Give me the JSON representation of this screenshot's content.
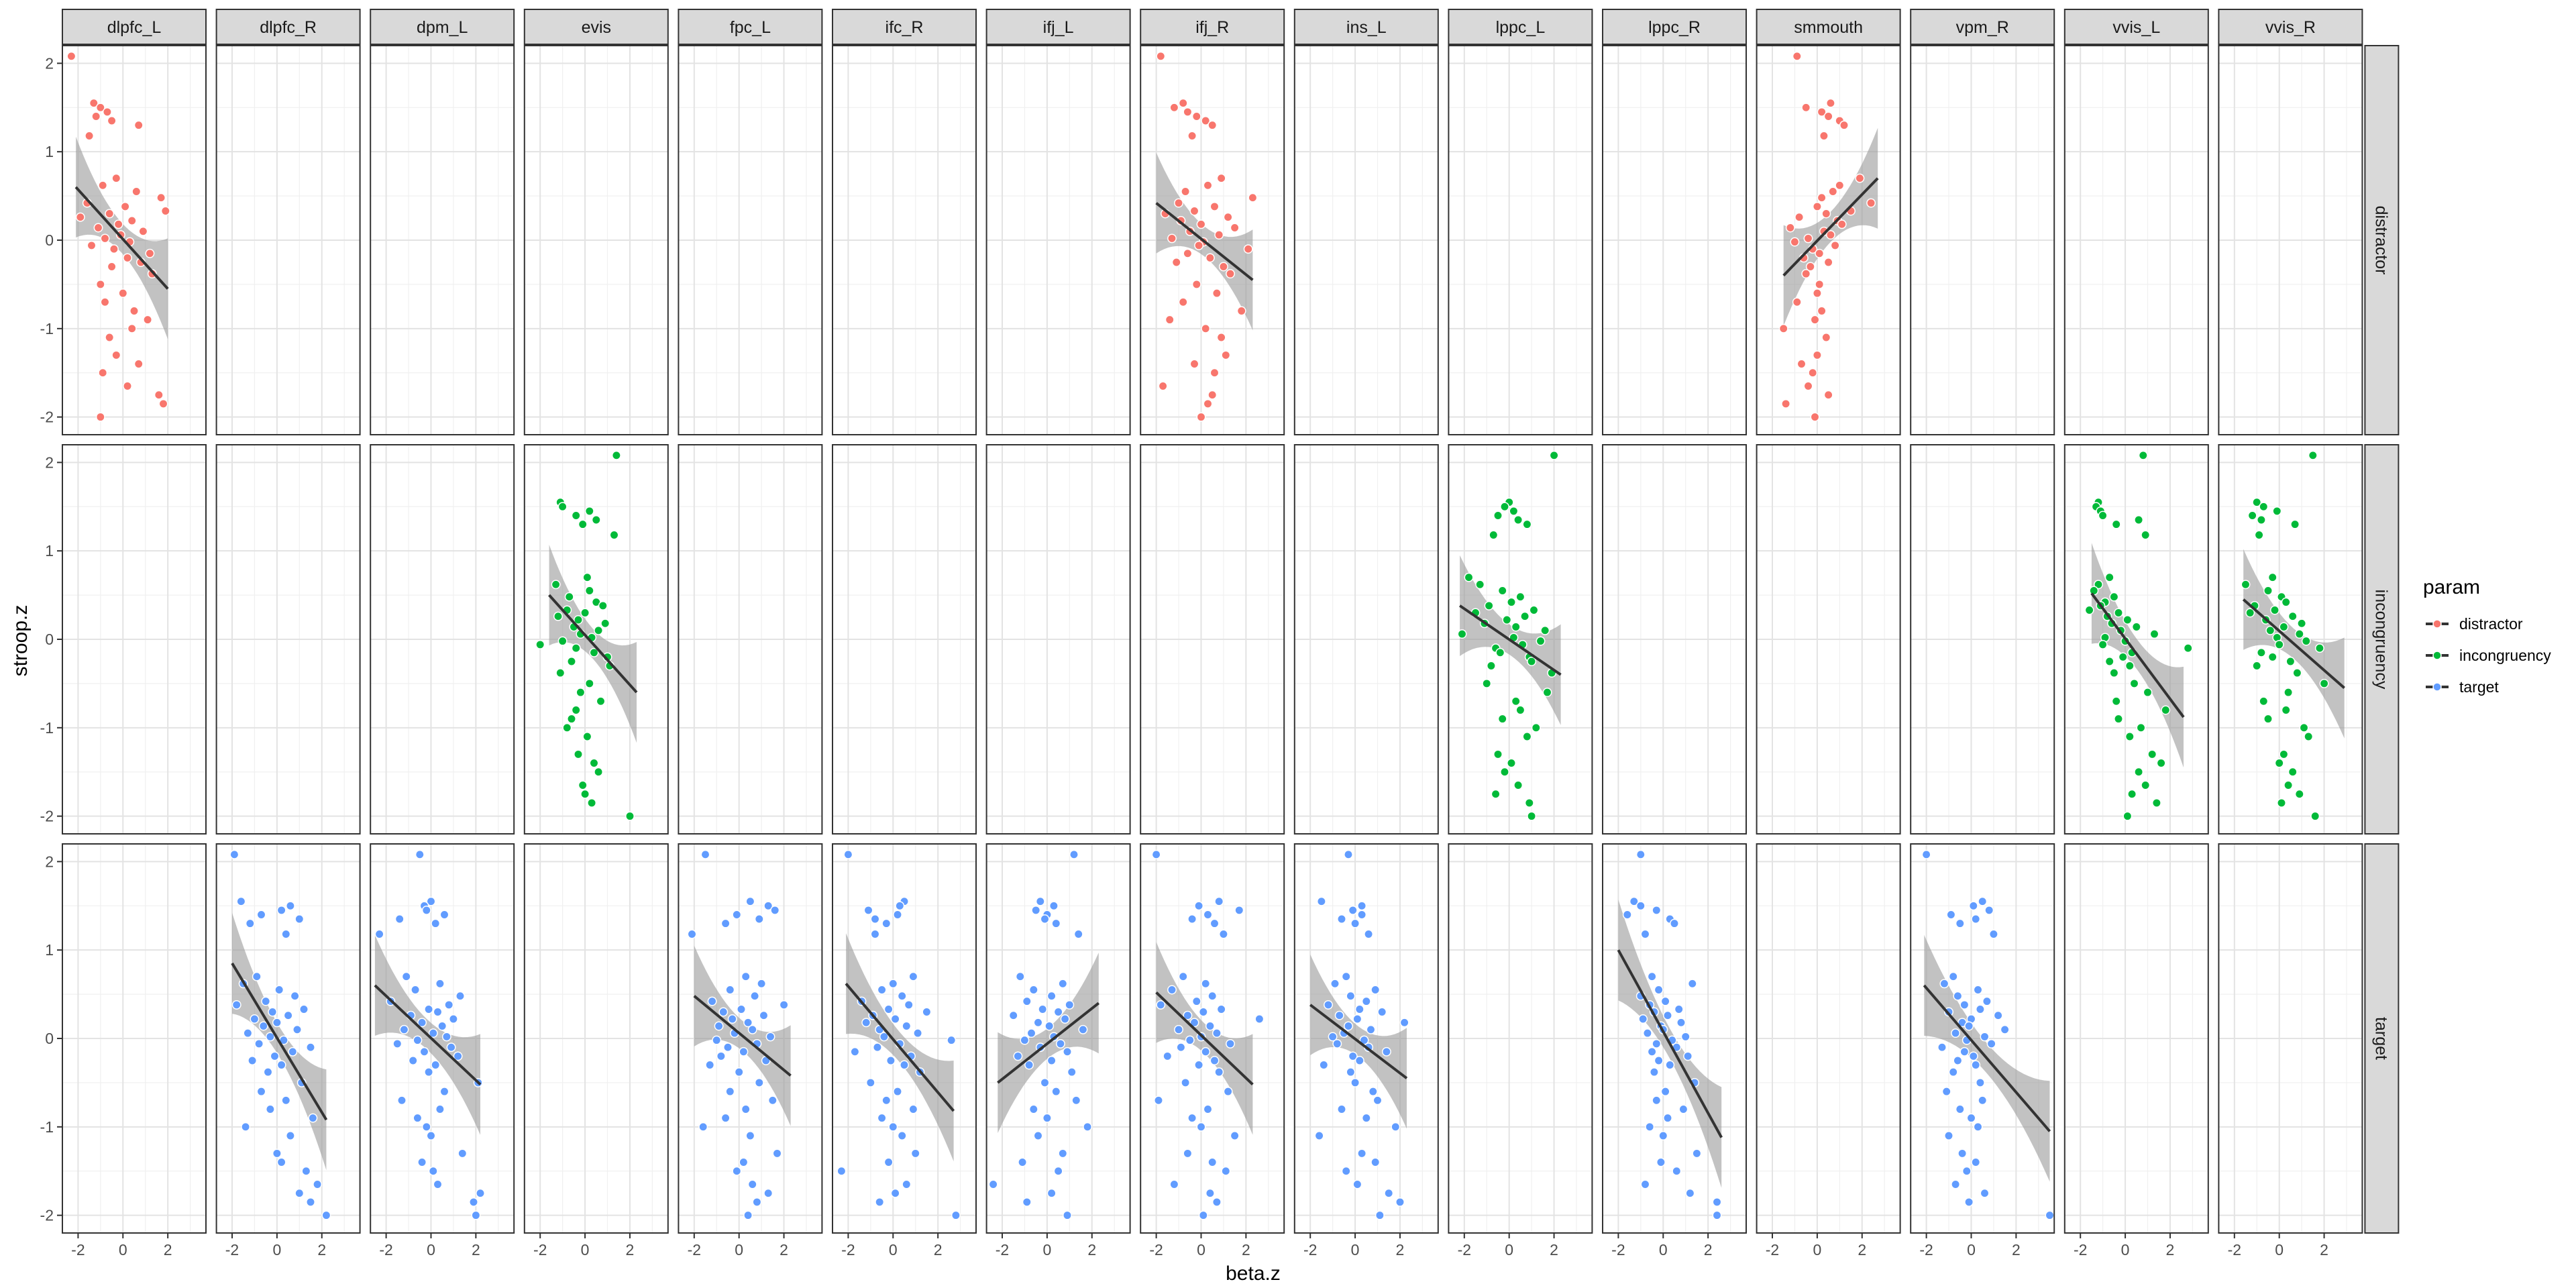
{
  "chart_data": {
    "type": "scatter",
    "facet_columns": [
      "dlpfc_L",
      "dlpfc_R",
      "dpm_L",
      "evis",
      "fpc_L",
      "ifc_R",
      "ifj_L",
      "ifj_R",
      "ins_L",
      "lppc_L",
      "lppc_R",
      "smmouth",
      "vpm_R",
      "vvis_L",
      "vvis_R"
    ],
    "facet_rows": [
      "distractor",
      "incongruency",
      "target"
    ],
    "xlabel": "beta.z",
    "ylabel": "stroop.z",
    "xlim": [
      -2.7,
      3.7
    ],
    "ylim": [
      -2.2,
      2.2
    ],
    "x_ticks": [
      -2,
      0,
      2
    ],
    "y_ticks": [
      -2,
      -1,
      0,
      1,
      2
    ],
    "x_tick_labels": [
      "-2",
      "0",
      "2"
    ],
    "y_tick_labels": [
      "-2",
      "-1",
      "0",
      "1",
      "2"
    ],
    "grid": true,
    "smoothing": "linear fit with confidence band",
    "legend": {
      "title": "param",
      "position": "right",
      "entries": [
        {
          "name": "distractor",
          "color": "#F8766D"
        },
        {
          "name": "incongruency",
          "color": "#00BA38"
        },
        {
          "name": "target",
          "color": "#619CFF"
        }
      ]
    },
    "stroop_z": [
      2.08,
      1.55,
      1.5,
      1.45,
      1.4,
      1.35,
      1.3,
      1.18,
      0.7,
      0.62,
      0.55,
      0.48,
      0.42,
      0.38,
      0.33,
      0.3,
      0.26,
      0.22,
      0.18,
      0.14,
      0.1,
      0.06,
      0.02,
      -0.02,
      -0.06,
      -0.1,
      -0.15,
      -0.2,
      -0.25,
      -0.3,
      -0.38,
      -0.5,
      -0.6,
      -0.7,
      -0.8,
      -0.9,
      -1.0,
      -1.1,
      -1.3,
      -1.4,
      -1.5,
      -1.65,
      -1.75,
      -1.85,
      -2.0
    ],
    "panels": [
      {
        "row": "distractor",
        "col": "dlpfc_L",
        "x": [
          -2.3,
          -1.3,
          -1.0,
          -0.7,
          -1.2,
          -0.5,
          0.7,
          -1.5,
          -0.3,
          -0.9,
          0.6,
          1.7,
          -1.6,
          0.1,
          1.9,
          -0.6,
          -1.9,
          0.4,
          -0.2,
          -1.1,
          0.9,
          -0.1,
          -0.8,
          0.3,
          -1.4,
          -0.4,
          1.2,
          0.2,
          0.8,
          -0.5,
          1.3,
          -1.0,
          0.0,
          -0.8,
          0.5,
          1.1,
          0.4,
          -0.6,
          -0.3,
          0.7,
          -0.9,
          0.2,
          1.6,
          1.8,
          -1.0
        ],
        "fit": {
          "x0": -2.1,
          "x1": 2.0,
          "y0": 0.6,
          "y1": -0.55
        }
      },
      {
        "row": "distractor",
        "col": "ifj_R",
        "x": [
          -1.8,
          -0.8,
          -1.2,
          -0.6,
          -0.2,
          0.2,
          0.5,
          -0.4,
          0.9,
          0.3,
          -0.7,
          2.3,
          -1.0,
          0.6,
          -0.3,
          -1.6,
          1.2,
          -0.9,
          0.0,
          1.5,
          -0.5,
          0.8,
          -1.3,
          0.1,
          -0.1,
          2.1,
          -0.6,
          0.4,
          -1.1,
          1.0,
          1.3,
          -0.2,
          0.7,
          -0.8,
          1.8,
          -1.4,
          0.2,
          0.9,
          1.1,
          -0.3,
          0.6,
          -1.7,
          0.5,
          0.3,
          0.0
        ],
        "fit": {
          "x0": -2.0,
          "x1": 2.3,
          "y0": 0.42,
          "y1": -0.45
        }
      },
      {
        "row": "distractor",
        "col": "smmouth",
        "x": [
          -0.9,
          0.6,
          -0.5,
          0.2,
          0.5,
          1.0,
          1.2,
          0.3,
          1.9,
          1.0,
          0.7,
          0.2,
          2.4,
          0.0,
          1.5,
          0.4,
          -0.8,
          0.9,
          1.1,
          -1.2,
          0.3,
          0.6,
          -0.4,
          -1.0,
          0.8,
          -0.2,
          0.1,
          -0.6,
          0.5,
          -0.3,
          -0.5,
          0.1,
          0.0,
          -0.9,
          0.2,
          -0.1,
          -1.5,
          0.4,
          0.0,
          -0.7,
          -0.2,
          -0.4,
          0.5,
          -1.4,
          -0.1
        ],
        "fit": {
          "x0": -1.5,
          "x1": 2.7,
          "y0": -0.4,
          "y1": 0.7
        }
      },
      {
        "row": "incongruency",
        "col": "evis",
        "x": [
          1.4,
          -1.1,
          -1.0,
          0.2,
          -0.4,
          0.5,
          -0.1,
          1.3,
          0.1,
          -1.3,
          0.2,
          -0.7,
          0.5,
          0.8,
          -0.8,
          0.0,
          -1.2,
          -0.3,
          0.9,
          -0.5,
          0.6,
          -0.2,
          0.3,
          -1.0,
          -2.0,
          -0.4,
          0.4,
          1.0,
          -0.6,
          1.1,
          -1.1,
          0.2,
          -0.2,
          0.7,
          -0.4,
          -0.6,
          -0.8,
          0.1,
          -0.3,
          0.4,
          0.6,
          -0.1,
          0.0,
          0.3,
          2.0
        ],
        "fit": {
          "x0": -1.6,
          "x1": 2.3,
          "y0": 0.5,
          "y1": -0.6
        }
      },
      {
        "row": "incongruency",
        "col": "lppc_L",
        "x": [
          2.0,
          0.0,
          -0.2,
          0.2,
          -0.5,
          0.4,
          0.8,
          -0.7,
          -1.8,
          -1.3,
          -0.3,
          0.5,
          0.1,
          -0.9,
          1.1,
          -1.5,
          0.7,
          -0.1,
          -1.1,
          0.3,
          1.6,
          -2.1,
          0.2,
          1.4,
          0.6,
          -0.6,
          -0.4,
          0.9,
          1.0,
          -0.8,
          1.9,
          -1.0,
          1.7,
          0.3,
          0.5,
          -0.3,
          1.2,
          0.8,
          -0.5,
          0.1,
          -0.2,
          0.4,
          -0.6,
          0.9,
          1.0
        ],
        "fit": {
          "x0": -2.2,
          "x1": 2.3,
          "y0": 0.38,
          "y1": -0.4
        }
      },
      {
        "row": "incongruency",
        "col": "vvis_L",
        "x": [
          0.8,
          -1.2,
          -1.3,
          -1.1,
          -1.0,
          0.6,
          -0.4,
          0.9,
          -0.7,
          -1.2,
          -1.4,
          -0.5,
          -0.9,
          -1.1,
          -1.6,
          -0.3,
          -0.8,
          0.1,
          -0.6,
          0.5,
          -0.2,
          1.3,
          -0.9,
          0.0,
          -1.0,
          2.8,
          0.3,
          -0.1,
          -0.7,
          0.2,
          -0.5,
          0.4,
          1.0,
          -0.4,
          1.8,
          -0.3,
          0.7,
          0.2,
          1.2,
          1.6,
          0.6,
          0.9,
          0.3,
          1.4,
          0.1
        ],
        "fit": {
          "x0": -1.5,
          "x1": 2.6,
          "y0": 0.52,
          "y1": -0.88
        }
      },
      {
        "row": "incongruency",
        "col": "vvis_R",
        "x": [
          1.5,
          -1.0,
          -0.7,
          -0.1,
          -1.2,
          -0.8,
          0.7,
          -0.9,
          -0.3,
          -1.5,
          -0.5,
          0.1,
          0.3,
          -1.1,
          -0.2,
          -1.3,
          0.6,
          -0.6,
          1.0,
          0.2,
          -0.4,
          0.9,
          -0.1,
          1.2,
          0.0,
          1.8,
          -0.8,
          -0.3,
          0.5,
          -1.0,
          0.8,
          2.0,
          0.4,
          -0.7,
          0.3,
          -0.5,
          1.1,
          1.3,
          0.2,
          0.0,
          0.6,
          0.4,
          0.9,
          0.1,
          1.6
        ],
        "fit": {
          "x0": -1.6,
          "x1": 2.9,
          "y0": 0.45,
          "y1": -0.55
        }
      },
      {
        "row": "target",
        "col": "dlpfc_R",
        "x": [
          -1.9,
          -1.6,
          0.6,
          0.2,
          -0.7,
          1.0,
          -1.2,
          0.4,
          -0.9,
          -1.5,
          0.1,
          0.8,
          -0.5,
          -1.8,
          1.2,
          -0.2,
          0.5,
          -1.0,
          0.0,
          -0.6,
          0.9,
          -1.3,
          -0.3,
          0.3,
          -0.8,
          1.5,
          0.7,
          -0.1,
          -1.1,
          0.2,
          -0.4,
          1.1,
          -0.7,
          0.4,
          -0.3,
          1.6,
          -1.4,
          0.6,
          0.0,
          0.2,
          1.3,
          1.8,
          1.0,
          1.5,
          2.2
        ],
        "fit": {
          "x0": -2.0,
          "x1": 2.2,
          "y0": 0.85,
          "y1": -0.92
        }
      },
      {
        "row": "target",
        "col": "dpm_L",
        "x": [
          -0.5,
          0.0,
          -0.3,
          -0.2,
          0.6,
          -1.4,
          0.2,
          -2.3,
          -1.1,
          0.4,
          -0.7,
          1.3,
          -1.8,
          0.8,
          -0.1,
          0.3,
          -0.9,
          1.0,
          -0.4,
          0.5,
          -1.2,
          0.1,
          0.7,
          -0.6,
          -1.5,
          0.9,
          -0.3,
          1.2,
          -0.8,
          0.2,
          -0.1,
          2.1,
          0.6,
          -1.3,
          0.4,
          -0.6,
          -0.2,
          0.0,
          1.4,
          -0.4,
          0.1,
          0.3,
          2.2,
          1.9,
          2.0
        ],
        "fit": {
          "x0": -2.5,
          "x1": 2.2,
          "y0": 0.6,
          "y1": -0.52
        }
      },
      {
        "row": "target",
        "col": "fpc_L",
        "x": [
          -1.5,
          0.5,
          1.3,
          1.6,
          -0.1,
          0.9,
          -0.6,
          -2.1,
          0.3,
          1.0,
          -0.4,
          0.7,
          -1.2,
          2.0,
          0.1,
          -0.7,
          1.1,
          -0.3,
          0.4,
          -0.9,
          0.6,
          -0.2,
          1.4,
          -1.0,
          0.8,
          -0.5,
          0.2,
          -0.8,
          1.2,
          -1.3,
          0.0,
          0.9,
          -0.4,
          1.5,
          0.3,
          -0.6,
          -1.6,
          0.5,
          1.7,
          0.2,
          -0.1,
          0.6,
          1.3,
          0.8,
          0.4
        ],
        "fit": {
          "x0": -2.0,
          "x1": 2.3,
          "y0": 0.48,
          "y1": -0.42
        }
      },
      {
        "row": "target",
        "col": "ifc_R",
        "x": [
          -2.0,
          0.5,
          0.3,
          -1.1,
          0.2,
          -0.8,
          -0.3,
          -0.8,
          0.9,
          0.0,
          -0.5,
          0.4,
          -1.4,
          0.7,
          -0.2,
          1.5,
          -0.9,
          0.1,
          -1.2,
          0.6,
          -0.6,
          1.1,
          -0.4,
          2.6,
          0.3,
          -0.7,
          -1.7,
          0.8,
          -0.1,
          0.5,
          1.2,
          -1.0,
          0.2,
          -0.3,
          0.9,
          -0.5,
          0.0,
          0.4,
          1.0,
          -0.2,
          -2.3,
          0.6,
          0.1,
          -0.6,
          2.8
        ],
        "fit": {
          "x0": -2.1,
          "x1": 2.7,
          "y0": 0.62,
          "y1": -0.82
        }
      },
      {
        "row": "target",
        "col": "ifj_L",
        "x": [
          1.2,
          -0.3,
          0.3,
          -0.5,
          0.0,
          -0.1,
          0.4,
          1.4,
          -1.2,
          0.7,
          -0.6,
          0.2,
          -0.9,
          1.0,
          -0.2,
          0.5,
          -1.5,
          0.8,
          -0.4,
          0.1,
          1.6,
          -0.7,
          0.3,
          -1.0,
          0.6,
          -0.3,
          0.9,
          -1.3,
          0.2,
          -0.8,
          1.1,
          -0.1,
          0.4,
          1.3,
          -0.6,
          0.0,
          1.8,
          -0.4,
          0.7,
          -1.1,
          0.5,
          -2.4,
          0.2,
          -0.9,
          0.9
        ],
        "fit": {
          "x0": -2.2,
          "x1": 2.3,
          "y0": -0.5,
          "y1": 0.4
        }
      },
      {
        "row": "target",
        "col": "ifj_R",
        "x": [
          -2.0,
          0.8,
          -0.1,
          1.7,
          0.3,
          -0.4,
          0.6,
          1.0,
          -0.8,
          0.2,
          -1.3,
          0.5,
          -0.2,
          -1.8,
          0.9,
          0.1,
          -0.6,
          2.6,
          -0.3,
          0.4,
          -1.0,
          0.7,
          0.0,
          -0.5,
          1.3,
          -0.9,
          0.2,
          -1.5,
          0.6,
          -0.1,
          0.8,
          -0.7,
          1.2,
          -1.9,
          0.3,
          -0.4,
          0.0,
          1.5,
          -0.6,
          0.5,
          1.1,
          -1.2,
          0.4,
          0.7,
          0.1
        ],
        "fit": {
          "x0": -2.0,
          "x1": 2.3,
          "y0": 0.52,
          "y1": -0.52
        }
      },
      {
        "row": "target",
        "col": "ins_L",
        "x": [
          -0.3,
          -1.5,
          0.3,
          -0.1,
          0.3,
          -0.6,
          0.0,
          0.6,
          -0.4,
          -0.9,
          0.9,
          -0.2,
          0.5,
          -1.2,
          0.2,
          1.2,
          -0.7,
          0.1,
          2.2,
          -0.3,
          0.7,
          -0.5,
          -1.0,
          0.4,
          -0.8,
          0.6,
          1.4,
          -0.1,
          0.2,
          -1.4,
          -0.2,
          0.0,
          0.8,
          1.0,
          -0.6,
          0.5,
          1.8,
          -1.6,
          0.3,
          0.9,
          -0.4,
          0.1,
          1.5,
          2.0,
          1.1
        ],
        "fit": {
          "x0": -2.0,
          "x1": 2.3,
          "y0": 0.38,
          "y1": -0.45
        }
      },
      {
        "row": "target",
        "col": "lppc_R",
        "x": [
          -1.0,
          -1.3,
          -1.0,
          -0.3,
          -1.6,
          0.3,
          0.5,
          -0.8,
          -0.5,
          1.3,
          -0.2,
          -1.0,
          0.1,
          -0.6,
          0.7,
          -0.4,
          0.2,
          -0.9,
          0.8,
          -0.1,
          0.0,
          -0.7,
          1.0,
          0.4,
          -0.3,
          0.6,
          -0.5,
          1.1,
          -0.2,
          0.3,
          -0.4,
          1.4,
          0.1,
          -0.3,
          0.9,
          0.2,
          -0.6,
          0.0,
          1.5,
          -0.1,
          0.6,
          -0.8,
          1.2,
          2.4,
          2.4
        ],
        "fit": {
          "x0": -2.0,
          "x1": 2.6,
          "y0": 1.0,
          "y1": -1.12
        }
      },
      {
        "row": "target",
        "col": "vpm_R",
        "x": [
          -2.0,
          0.5,
          0.1,
          0.8,
          -0.9,
          0.2,
          -0.5,
          1.0,
          -0.8,
          -1.2,
          0.3,
          -0.6,
          0.7,
          -0.3,
          0.4,
          -1.0,
          1.2,
          0.0,
          -0.4,
          -0.1,
          1.5,
          -0.7,
          0.6,
          -0.2,
          0.9,
          -1.3,
          -0.3,
          0.1,
          -0.6,
          0.2,
          -0.8,
          0.4,
          -1.1,
          0.5,
          -0.5,
          0.0,
          0.3,
          -1.0,
          -0.4,
          0.2,
          -0.2,
          -0.7,
          0.6,
          -0.1,
          3.5
        ],
        "fit": {
          "x0": -2.1,
          "x1": 3.5,
          "y0": 0.6,
          "y1": -1.05
        }
      }
    ]
  }
}
